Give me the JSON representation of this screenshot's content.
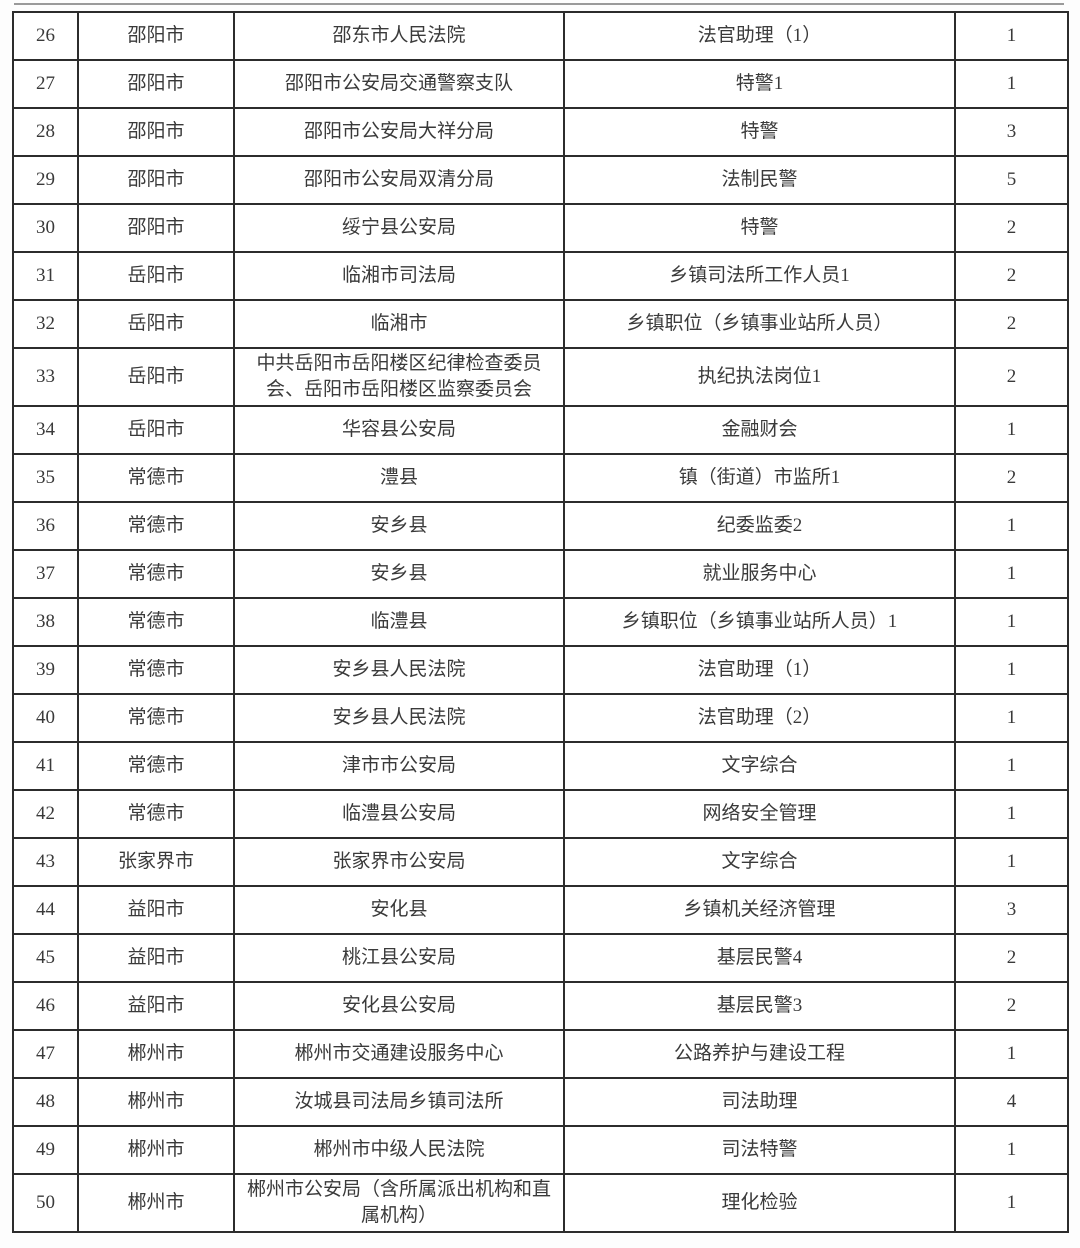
{
  "table": {
    "rows": [
      {
        "no": "26",
        "city": "邵阳市",
        "org": "邵东市人民法院",
        "position": "法官助理（1）",
        "count": "1",
        "tall": false
      },
      {
        "no": "27",
        "city": "邵阳市",
        "org": "邵阳市公安局交通警察支队",
        "position": "特警1",
        "count": "1",
        "tall": false
      },
      {
        "no": "28",
        "city": "邵阳市",
        "org": "邵阳市公安局大祥分局",
        "position": "特警",
        "count": "3",
        "tall": false
      },
      {
        "no": "29",
        "city": "邵阳市",
        "org": "邵阳市公安局双清分局",
        "position": "法制民警",
        "count": "5",
        "tall": false
      },
      {
        "no": "30",
        "city": "邵阳市",
        "org": "绥宁县公安局",
        "position": "特警",
        "count": "2",
        "tall": false
      },
      {
        "no": "31",
        "city": "岳阳市",
        "org": "临湘市司法局",
        "position": "乡镇司法所工作人员1",
        "count": "2",
        "tall": false
      },
      {
        "no": "32",
        "city": "岳阳市",
        "org": "临湘市",
        "position": "乡镇职位（乡镇事业站所人员）",
        "count": "2",
        "tall": false
      },
      {
        "no": "33",
        "city": "岳阳市",
        "org": "中共岳阳市岳阳楼区纪律检查委员会、岳阳市岳阳楼区监察委员会",
        "position": "执纪执法岗位1",
        "count": "2",
        "tall": true
      },
      {
        "no": "34",
        "city": "岳阳市",
        "org": "华容县公安局",
        "position": "金融财会",
        "count": "1",
        "tall": false
      },
      {
        "no": "35",
        "city": "常德市",
        "org": "澧县",
        "position": "镇（街道）市监所1",
        "count": "2",
        "tall": false
      },
      {
        "no": "36",
        "city": "常德市",
        "org": "安乡县",
        "position": "纪委监委2",
        "count": "1",
        "tall": false
      },
      {
        "no": "37",
        "city": "常德市",
        "org": "安乡县",
        "position": "就业服务中心",
        "count": "1",
        "tall": false
      },
      {
        "no": "38",
        "city": "常德市",
        "org": "临澧县",
        "position": "乡镇职位（乡镇事业站所人员）1",
        "count": "1",
        "tall": false
      },
      {
        "no": "39",
        "city": "常德市",
        "org": "安乡县人民法院",
        "position": "法官助理（1）",
        "count": "1",
        "tall": false
      },
      {
        "no": "40",
        "city": "常德市",
        "org": "安乡县人民法院",
        "position": "法官助理（2）",
        "count": "1",
        "tall": false
      },
      {
        "no": "41",
        "city": "常德市",
        "org": "津市市公安局",
        "position": "文字综合",
        "count": "1",
        "tall": false
      },
      {
        "no": "42",
        "city": "常德市",
        "org": "临澧县公安局",
        "position": "网络安全管理",
        "count": "1",
        "tall": false
      },
      {
        "no": "43",
        "city": "张家界市",
        "org": "张家界市公安局",
        "position": "文字综合",
        "count": "1",
        "tall": false
      },
      {
        "no": "44",
        "city": "益阳市",
        "org": "安化县",
        "position": "乡镇机关经济管理",
        "count": "3",
        "tall": false
      },
      {
        "no": "45",
        "city": "益阳市",
        "org": "桃江县公安局",
        "position": "基层民警4",
        "count": "2",
        "tall": false
      },
      {
        "no": "46",
        "city": "益阳市",
        "org": "安化县公安局",
        "position": "基层民警3",
        "count": "2",
        "tall": false
      },
      {
        "no": "47",
        "city": "郴州市",
        "org": "郴州市交通建设服务中心",
        "position": "公路养护与建设工程",
        "count": "1",
        "tall": false
      },
      {
        "no": "48",
        "city": "郴州市",
        "org": "汝城县司法局乡镇司法所",
        "position": "司法助理",
        "count": "4",
        "tall": false
      },
      {
        "no": "49",
        "city": "郴州市",
        "org": "郴州市中级人民法院",
        "position": "司法特警",
        "count": "1",
        "tall": false
      },
      {
        "no": "50",
        "city": "郴州市",
        "org": "郴州市公安局（含所属派出机构和直属机构）",
        "position": "理化检验",
        "count": "1",
        "tall": true
      }
    ]
  }
}
